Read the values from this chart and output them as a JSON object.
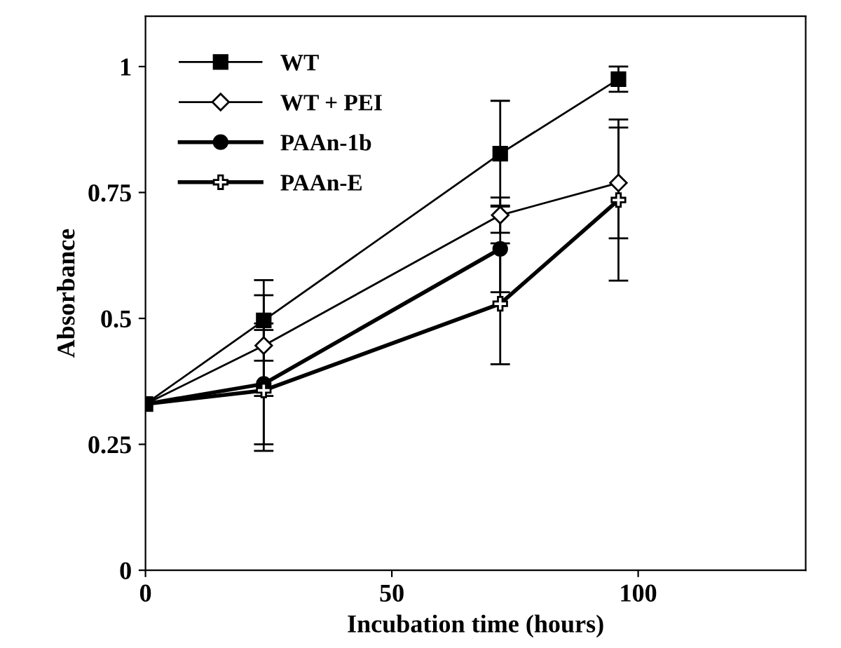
{
  "chart_data": {
    "type": "line",
    "xlabel": "Incubation time (hours)",
    "ylabel": "Absorbance",
    "x": [
      0,
      24,
      72,
      96
    ],
    "series": [
      {
        "name": "WT",
        "color": "#000000",
        "marker": "square",
        "values": [
          0.33,
          0.496,
          0.827,
          0.975
        ],
        "errors": [
          null,
          0.08,
          0.105,
          0.025
        ]
      },
      {
        "name": "WT + PEI",
        "color": "#000000",
        "marker": "diamond",
        "values": [
          0.33,
          0.446,
          0.705,
          0.769
        ],
        "errors": [
          null,
          0.1,
          0.035,
          0.11
        ]
      },
      {
        "name": "PAAn-1b",
        "color": "#000000",
        "marker": "circle",
        "values": [
          0.33,
          0.37,
          0.638,
          null
        ],
        "errors": [
          null,
          0.12,
          0.086,
          null
        ]
      },
      {
        "name": "PAAn-E",
        "color": "#000000",
        "marker": "cross",
        "values": [
          0.33,
          0.357,
          0.529,
          0.735
        ],
        "errors": [
          null,
          0.12,
          0.12,
          0.16
        ]
      }
    ],
    "xlim": [
      0,
      134
    ],
    "ylim": [
      0,
      1.1
    ],
    "xticks": [
      0,
      50,
      100
    ],
    "yticks": [
      0,
      0.25,
      0.5,
      0.75,
      1
    ],
    "grid": false,
    "legend": "top left"
  }
}
